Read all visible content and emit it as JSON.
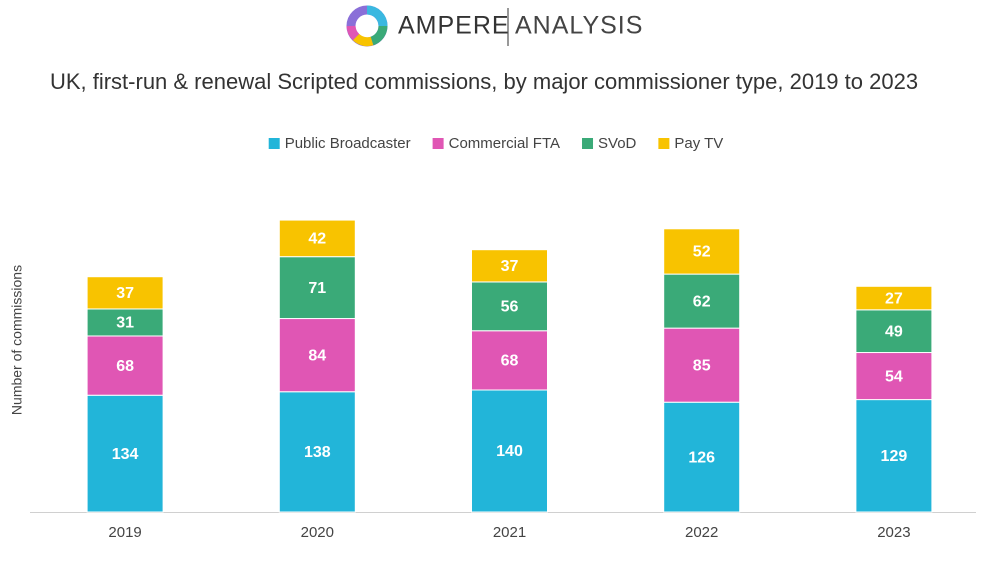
{
  "brand": {
    "name": "AMPERE",
    "tagline": "ANALYSIS"
  },
  "chart_data": {
    "type": "stacked-bar",
    "title": "UK, first-run & renewal Scripted commissions, by major commissioner type, 2019 to 2023",
    "y_label": "Number of commissions",
    "categories": [
      "2019",
      "2020",
      "2021",
      "2022",
      "2023"
    ],
    "series": [
      {
        "name": "Public Broadcaster",
        "color": "#22b5d9",
        "values": [
          134,
          138,
          140,
          126,
          129
        ]
      },
      {
        "name": "Commercial FTA",
        "color": "#e056b4",
        "values": [
          68,
          84,
          68,
          85,
          54
        ]
      },
      {
        "name": "SVoD",
        "color": "#3aaa78",
        "values": [
          31,
          71,
          56,
          62,
          49
        ]
      },
      {
        "name": "Pay TV",
        "color": "#f8c300",
        "values": [
          37,
          42,
          37,
          52,
          27
        ]
      }
    ],
    "ylim": [
      0,
      350
    ],
    "legend": "top"
  }
}
